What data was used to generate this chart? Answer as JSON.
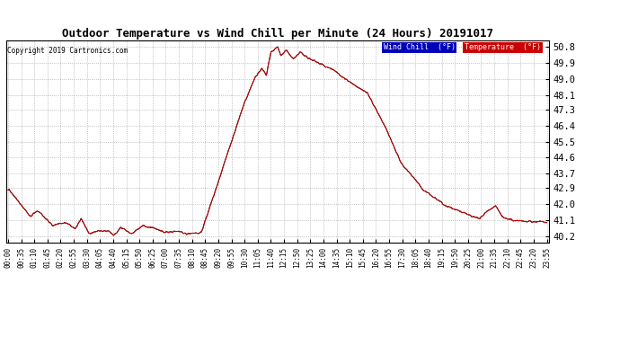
{
  "title": "Outdoor Temperature vs Wind Chill per Minute (24 Hours) 20191017",
  "copyright": "Copyright 2019 Cartronics.com",
  "background_color": "#ffffff",
  "grid_color": "#aaaaaa",
  "line_color_temp": "#cc0000",
  "line_color_wc": "#000000",
  "legend_wc_bg": "#0000bb",
  "legend_temp_bg": "#cc0000",
  "legend_wc_text": "Wind Chill  (°F)",
  "legend_temp_text": "Temperature  (°F)",
  "yticks": [
    40.2,
    41.1,
    42.0,
    42.9,
    43.7,
    44.6,
    45.5,
    46.4,
    47.3,
    48.1,
    49.0,
    49.9,
    50.8
  ],
  "ylim": [
    39.85,
    51.15
  ],
  "xtick_labels": [
    "00:00",
    "00:35",
    "01:10",
    "01:45",
    "02:20",
    "02:55",
    "03:30",
    "04:05",
    "04:40",
    "05:15",
    "05:50",
    "06:25",
    "07:00",
    "07:35",
    "08:10",
    "08:45",
    "09:20",
    "09:55",
    "10:30",
    "11:05",
    "11:40",
    "12:15",
    "12:50",
    "13:25",
    "14:00",
    "14:35",
    "15:10",
    "15:45",
    "16:20",
    "16:55",
    "17:30",
    "18:05",
    "18:40",
    "19:15",
    "19:50",
    "20:25",
    "21:00",
    "21:35",
    "22:10",
    "22:45",
    "23:20",
    "23:55"
  ]
}
